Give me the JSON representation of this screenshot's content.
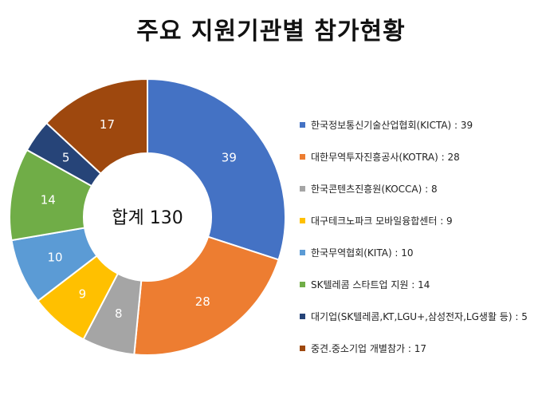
{
  "chart_data": {
    "type": "pie",
    "style": "donut",
    "title": "주요 지원기관별 참가현황",
    "center_label": "합계 130",
    "legend_position": "right",
    "slices": [
      {
        "name": "한국정보통신기술산업협회(KICTA)",
        "value": 39,
        "color": "#4472C4",
        "legend": "한국정보통신기술산업협회(KICTA) : 39"
      },
      {
        "name": "대한무역투자진흥공사(KOTRA)",
        "value": 28,
        "color": "#ED7D31",
        "legend": "대한무역투자진흥공사(KOTRA) : 28"
      },
      {
        "name": "한국콘텐츠진흥원(KOCCA)",
        "value": 8,
        "color": "#A5A5A5",
        "legend": "한국콘텐츠진흥원(KOCCA) : 8"
      },
      {
        "name": "대구테크노파크 모바일융합센터",
        "value": 9,
        "color": "#FFC000",
        "legend": "대구테크노파크 모바일융합센터 : 9"
      },
      {
        "name": "한국무역협회(KITA)",
        "value": 10,
        "color": "#5B9BD5",
        "legend": "한국무역협회(KITA) : 10"
      },
      {
        "name": "SK텔레콤 스타트업 지원",
        "value": 14,
        "color": "#70AD47",
        "legend": "SK텔레콤 스타트업 지원 : 14"
      },
      {
        "name": "대기업(SK텔레콤,KT,LGU+,삼성전자,LG생활 등)",
        "value": 5,
        "color": "#264478",
        "legend": "대기업(SK텔레콤,KT,LGU+,삼성전자,LG생활 등) : 5"
      },
      {
        "name": "중견.중소기업 개별참가",
        "value": 17,
        "color": "#9E480E",
        "legend": "중견.중소기업 개별참가 : 17"
      }
    ]
  }
}
